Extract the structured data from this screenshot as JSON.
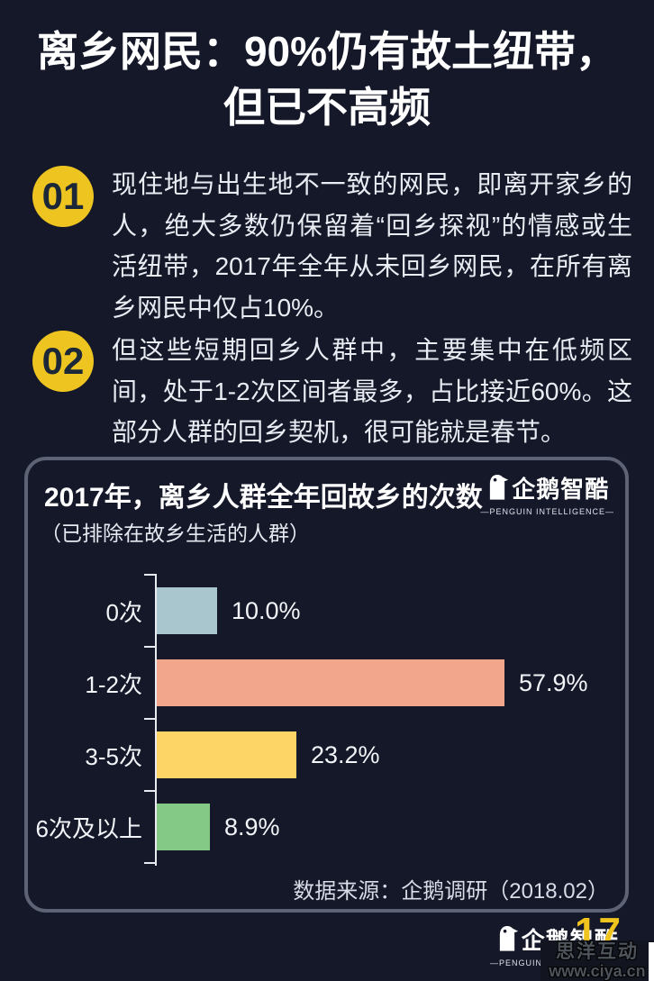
{
  "title": {
    "line1": "离乡网民：90%仍有故土纽带，",
    "line2": "但已不高频"
  },
  "points": [
    {
      "number": "01",
      "text": "现住地与出生地不一致的网民，即离开家乡的人，绝大多数仍保留着“回乡探视”的情感或生活纽带，2017年全年从未回乡网民，在所有离乡网民中仅占10%。"
    },
    {
      "number": "02",
      "text": "但这些短期回乡人群中，主要集中在低频区间，处于1-2次区间者最多，占比接近60%。这部分人群的回乡契机，很可能就是春节。"
    }
  ],
  "panel": {
    "title": "2017年，离乡人群全年回故乡的次数",
    "subtitle": "（已排除在故乡生活的人群）",
    "source": "数据来源：企鹅调研（2018.02）",
    "logo": {
      "name": "企鹅智酷",
      "tagline": "—PENGUIN INTELLIGENCE—"
    }
  },
  "chart_data": {
    "type": "bar",
    "orientation": "horizontal",
    "title": "2017年，离乡人群全年回故乡的次数",
    "subtitle": "（已排除在故乡生活的人群）",
    "categories": [
      "0次",
      "1-2次",
      "3-5次",
      "6次及以上"
    ],
    "values": [
      10.0,
      57.9,
      23.2,
      8.9
    ],
    "value_labels": [
      "10.0%",
      "57.9%",
      "23.2%",
      "8.9%"
    ],
    "bar_colors": [
      "#a9c6ce",
      "#f2a68c",
      "#fcd566",
      "#84c985"
    ],
    "xlim": [
      0,
      62
    ],
    "grid": false,
    "legend": false,
    "source": "数据来源：企鹅调研（2018.02）"
  },
  "footer": {
    "logo": {
      "name": "企鹅智酷",
      "tagline": "—PENGUIN INTELLIGENCE—"
    },
    "page_number": "17",
    "watermark": {
      "line1": "思洋互动",
      "line2": "www.ciya.cn"
    }
  },
  "colors": {
    "background": "#141829",
    "accent_yellow": "#eec420",
    "panel_border": "#5d6375",
    "axis": "#e8eaf0",
    "text_primary": "#ffffff",
    "text_body": "#e9ecf2"
  }
}
